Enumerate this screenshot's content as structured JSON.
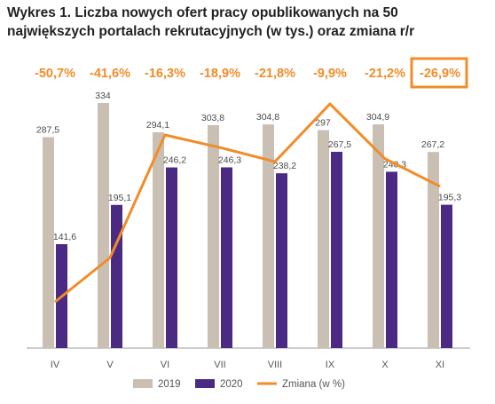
{
  "title": "Wykres 1. Liczba nowych ofert pracy opublikowanych na 50 największych portalach rekrutacyjnych (w tys.) oraz zmiana r/r",
  "colors": {
    "s2019": "#c9bfb3",
    "s2020": "#4b2a84",
    "change": "#f28c28",
    "axis": "#9b9b9b",
    "highlight": "#f28c28"
  },
  "chart_data": {
    "type": "bar",
    "title": "Wykres 1. Liczba nowych ofert pracy opublikowanych na 50 największych portalach rekrutacyjnych (w tys.) oraz zmiana r/r",
    "categories": [
      "IV",
      "V",
      "VI",
      "VII",
      "VIII",
      "IX",
      "X",
      "XI"
    ],
    "ylim": [
      0,
      334
    ],
    "series": [
      {
        "name": "2019",
        "type": "bar",
        "values": [
          287.5,
          334,
          294.1,
          303.8,
          304.8,
          297,
          304.9,
          267.2
        ],
        "labels": [
          "287,5",
          "334",
          "294,1",
          "303,8",
          "304,8",
          "297",
          "304,9",
          "267,2"
        ]
      },
      {
        "name": "2020",
        "type": "bar",
        "values": [
          141.6,
          195.1,
          246.2,
          246.3,
          238.2,
          267.5,
          240.3,
          195.3
        ],
        "labels": [
          "141,6",
          "195,1",
          "246,2",
          "246,3",
          "238,2",
          "267,5",
          "240,3",
          "195,3"
        ]
      },
      {
        "name": "Zmiana (w %)",
        "type": "line",
        "values": [
          -50.7,
          -41.6,
          -16.3,
          -18.9,
          -21.8,
          -9.9,
          -21.2,
          -26.9
        ],
        "labels": [
          "-50,7%",
          "-41,6%",
          "-16,3%",
          "-18,9%",
          "-21,8%",
          "-9,9%",
          "-21,2%",
          "-26,9%"
        ]
      }
    ],
    "highlighted_label": "-26,9%",
    "legend": {
      "position": "bottom",
      "items": [
        "2019",
        "2020",
        "Zmiana (w %)"
      ]
    },
    "grid": false
  }
}
